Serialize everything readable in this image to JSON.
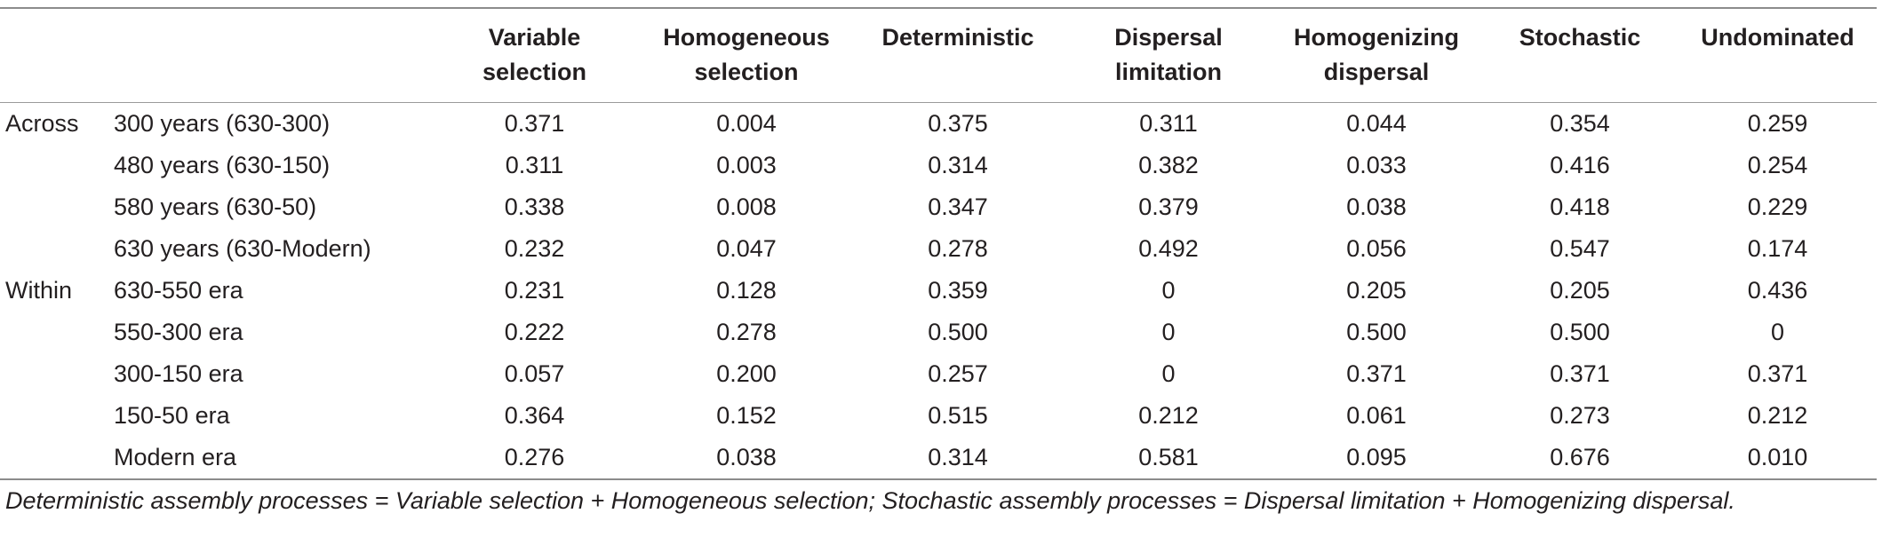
{
  "table": {
    "columns": [
      {
        "line1": "",
        "line2": ""
      },
      {
        "line1": "",
        "line2": ""
      },
      {
        "line1": "Variable",
        "line2": "selection"
      },
      {
        "line1": "Homogeneous",
        "line2": "selection"
      },
      {
        "line1": "Deterministic",
        "line2": ""
      },
      {
        "line1": "Dispersal",
        "line2": "limitation"
      },
      {
        "line1": "Homogenizing",
        "line2": "dispersal"
      },
      {
        "line1": "Stochastic",
        "line2": ""
      },
      {
        "line1": "Undominated",
        "line2": ""
      }
    ],
    "rows": [
      {
        "group": "Across",
        "label": "300 years (630-300)",
        "values": [
          "0.371",
          "0.004",
          "0.375",
          "0.311",
          "0.044",
          "0.354",
          "0.259"
        ]
      },
      {
        "group": "",
        "label": "480 years (630-150)",
        "values": [
          "0.311",
          "0.003",
          "0.314",
          "0.382",
          "0.033",
          "0.416",
          "0.254"
        ]
      },
      {
        "group": "",
        "label": "580 years (630-50)",
        "values": [
          "0.338",
          "0.008",
          "0.347",
          "0.379",
          "0.038",
          "0.418",
          "0.229"
        ]
      },
      {
        "group": "",
        "label": "630 years (630-Modern)",
        "values": [
          "0.232",
          "0.047",
          "0.278",
          "0.492",
          "0.056",
          "0.547",
          "0.174"
        ]
      },
      {
        "group": "Within",
        "label": "630-550 era",
        "values": [
          "0.231",
          "0.128",
          "0.359",
          "0",
          "0.205",
          "0.205",
          "0.436"
        ]
      },
      {
        "group": "",
        "label": "550-300 era",
        "values": [
          "0.222",
          "0.278",
          "0.500",
          "0",
          "0.500",
          "0.500",
          "0"
        ]
      },
      {
        "group": "",
        "label": "300-150 era",
        "values": [
          "0.057",
          "0.200",
          "0.257",
          "0",
          "0.371",
          "0.371",
          "0.371"
        ]
      },
      {
        "group": "",
        "label": "150-50 era",
        "values": [
          "0.364",
          "0.152",
          "0.515",
          "0.212",
          "0.061",
          "0.273",
          "0.212"
        ]
      },
      {
        "group": "",
        "label": "Modern era",
        "values": [
          "0.276",
          "0.038",
          "0.314",
          "0.581",
          "0.095",
          "0.676",
          "0.010"
        ]
      }
    ]
  },
  "footnote": "Deterministic assembly processes = Variable selection + Homogeneous selection; Stochastic assembly processes = Dispersal limitation + Homogenizing dispersal."
}
